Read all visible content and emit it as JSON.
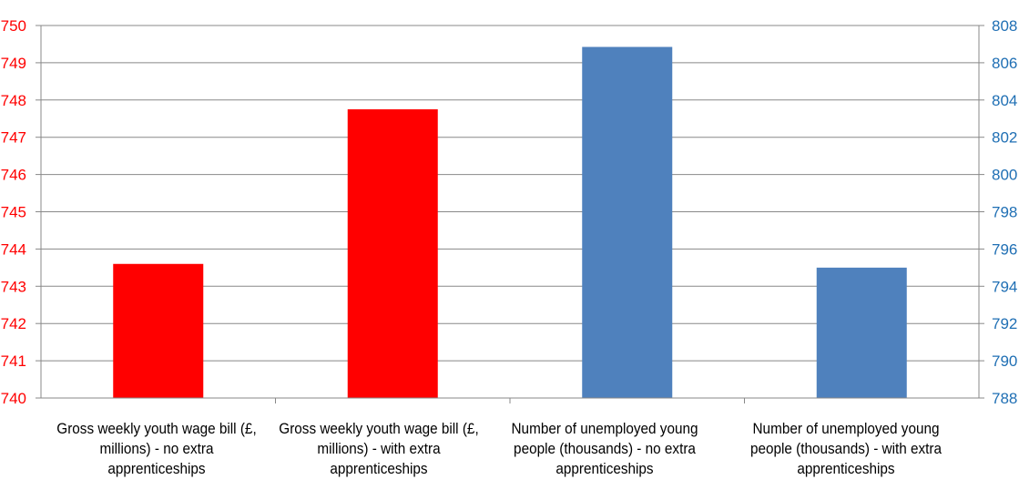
{
  "chart_data": {
    "type": "bar",
    "categories": [
      "Gross weekly youth wage bill (£, millions) - no extra apprenticeships",
      "Gross weekly youth wage bill (£, millions) - with extra apprenticeships",
      "Number of unemployed young people (thousands) - no extra apprenticeships",
      "Number of unemployed young people (thousands) - with extra apprenticeships"
    ],
    "series": [
      {
        "axis": "left",
        "color": "#ff0000",
        "values": [
          743.6,
          747.75,
          null,
          null
        ]
      },
      {
        "axis": "right",
        "color": "#4f81bd",
        "values": [
          null,
          null,
          806.85,
          795.0
        ]
      }
    ],
    "y_left": {
      "min": 740,
      "max": 750,
      "step": 1,
      "color": "#ff0000",
      "ticks": [
        "740",
        "741",
        "742",
        "743",
        "744",
        "745",
        "746",
        "747",
        "748",
        "749",
        "750"
      ]
    },
    "y_right": {
      "min": 788,
      "max": 808,
      "step": 2,
      "color": "#1f6fb4",
      "ticks": [
        "788",
        "790",
        "792",
        "794",
        "796",
        "798",
        "800",
        "802",
        "804",
        "806",
        "808"
      ]
    },
    "grid": true,
    "legend": "none",
    "title": "",
    "xlabel": "",
    "ylabel": ""
  }
}
